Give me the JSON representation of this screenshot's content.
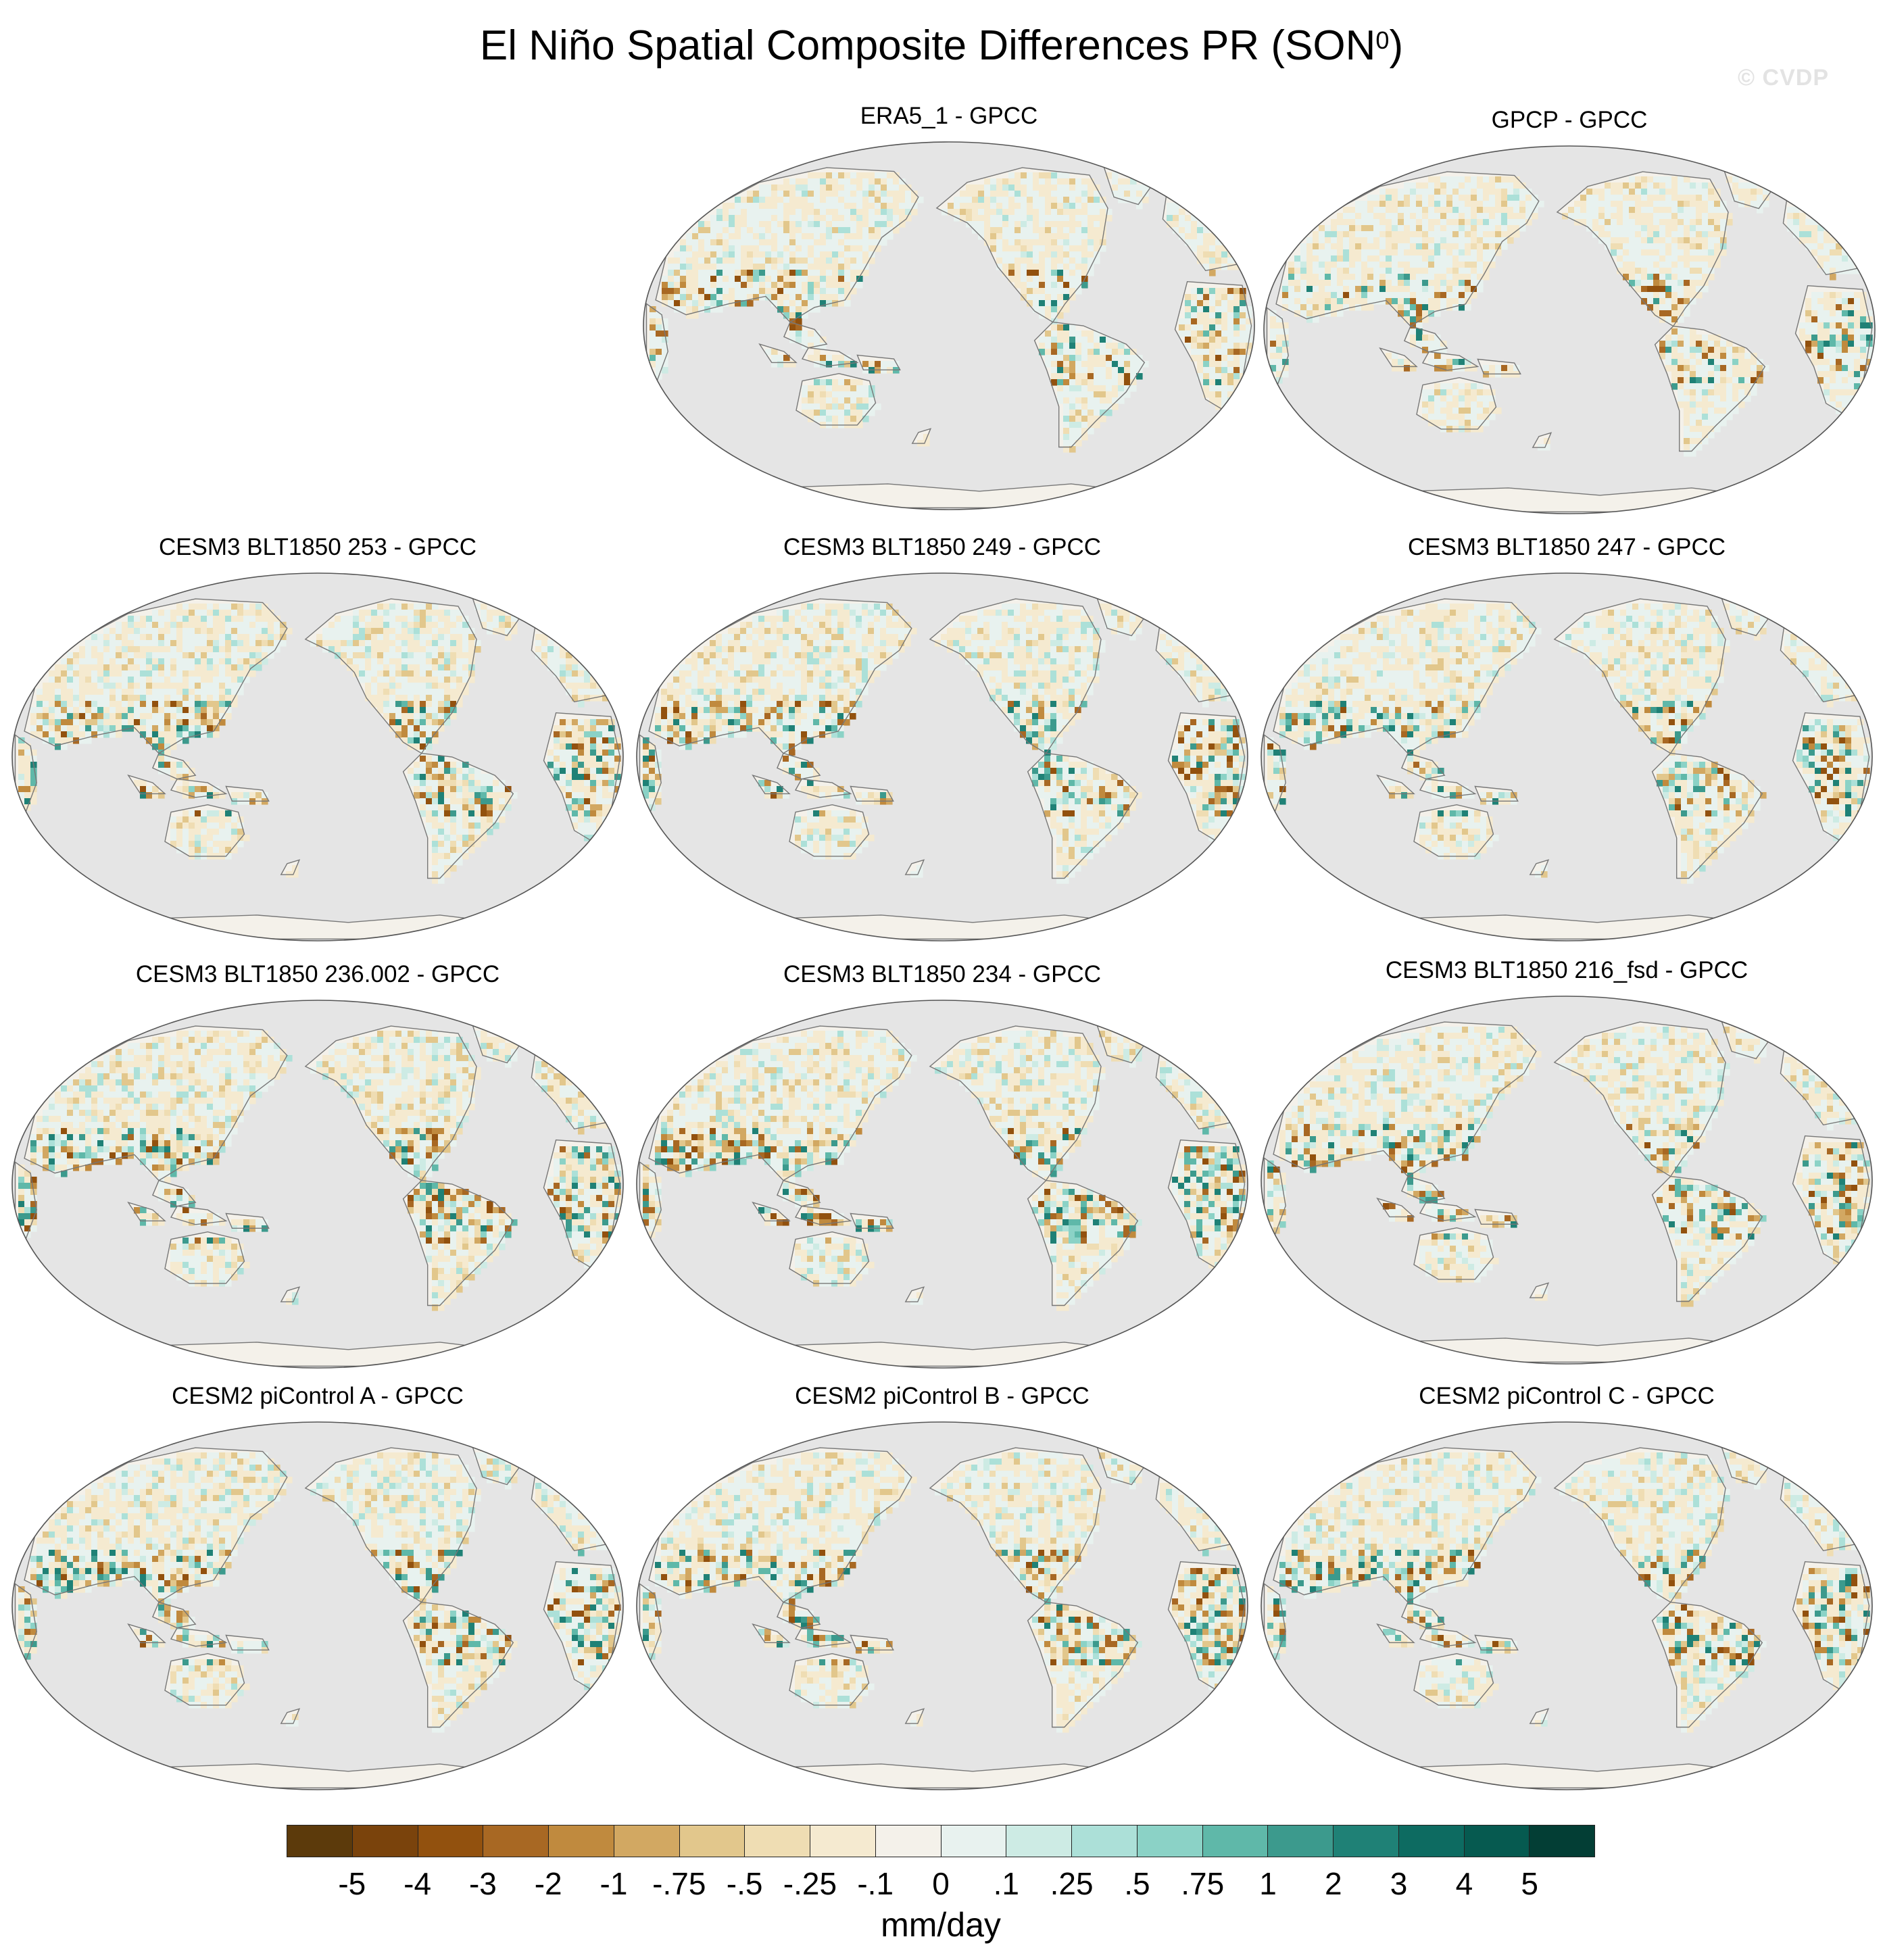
{
  "title": {
    "main": "El Niño Spatial Composite Differences PR (SON",
    "superscript": "0",
    "close": ")"
  },
  "watermark": "© CVDP",
  "panels": [
    {
      "title": "ERA5_1 - GPCC",
      "pattern": "era5",
      "seed": 11,
      "wet": 0.2,
      "dry": 0.25
    },
    {
      "title": "GPCP - GPCC",
      "pattern": "gpcp",
      "seed": 23,
      "wet": 0.18,
      "dry": 0.2
    },
    {
      "title": "CESM3 BLT1850 253 - GPCC",
      "pattern": "blt253",
      "seed": 37,
      "wet": 0.3,
      "dry": 0.3
    },
    {
      "title": "CESM3 BLT1850 249 - GPCC",
      "pattern": "blt249",
      "seed": 41,
      "wet": 0.28,
      "dry": 0.3
    },
    {
      "title": "CESM3 BLT1850 247 - GPCC",
      "pattern": "blt247",
      "seed": 53,
      "wet": 0.3,
      "dry": 0.28
    },
    {
      "title": "CESM3 BLT1850 236.002 - GPCC",
      "pattern": "blt236",
      "seed": 67,
      "wet": 0.32,
      "dry": 0.32
    },
    {
      "title": "CESM3 BLT1850 234 - GPCC",
      "pattern": "blt234",
      "seed": 71,
      "wet": 0.32,
      "dry": 0.34
    },
    {
      "title": "CESM3 BLT1850 216_fsd - GPCC",
      "pattern": "blt216",
      "seed": 83,
      "wet": 0.3,
      "dry": 0.3
    },
    {
      "title": "CESM2 piControl A - GPCC",
      "pattern": "picA",
      "seed": 97,
      "wet": 0.3,
      "dry": 0.32
    },
    {
      "title": "CESM2 piControl B - GPCC",
      "pattern": "picB",
      "seed": 101,
      "wet": 0.32,
      "dry": 0.32
    },
    {
      "title": "CESM2 piControl C - GPCC",
      "pattern": "picC",
      "seed": 113,
      "wet": 0.34,
      "dry": 0.3
    }
  ],
  "colorbar": {
    "colors": [
      "#5c3a0b",
      "#7a430c",
      "#92510e",
      "#a86823",
      "#c08a3e",
      "#d2a862",
      "#e2c78c",
      "#efddb3",
      "#f5ead0",
      "#f4f1ea",
      "#e8f2ef",
      "#cdebe4",
      "#ace0d8",
      "#8bd2c6",
      "#5fb8a9",
      "#3c9a8d",
      "#1f8176",
      "#0d6b61",
      "#065a50",
      "#033e35"
    ],
    "labels": [
      "-5",
      "-4",
      "-3",
      "-2",
      "-1",
      "-.75",
      "-.5",
      "-.25",
      "-.1",
      "0",
      ".1",
      ".25",
      ".5",
      ".75",
      "1",
      "2",
      "3",
      "4",
      "5"
    ],
    "units": "mm/day"
  },
  "map_style": {
    "ocean": "#e5e5e5",
    "land_base": "#f4f1ea",
    "coast": "#777777",
    "border": "#555555"
  }
}
